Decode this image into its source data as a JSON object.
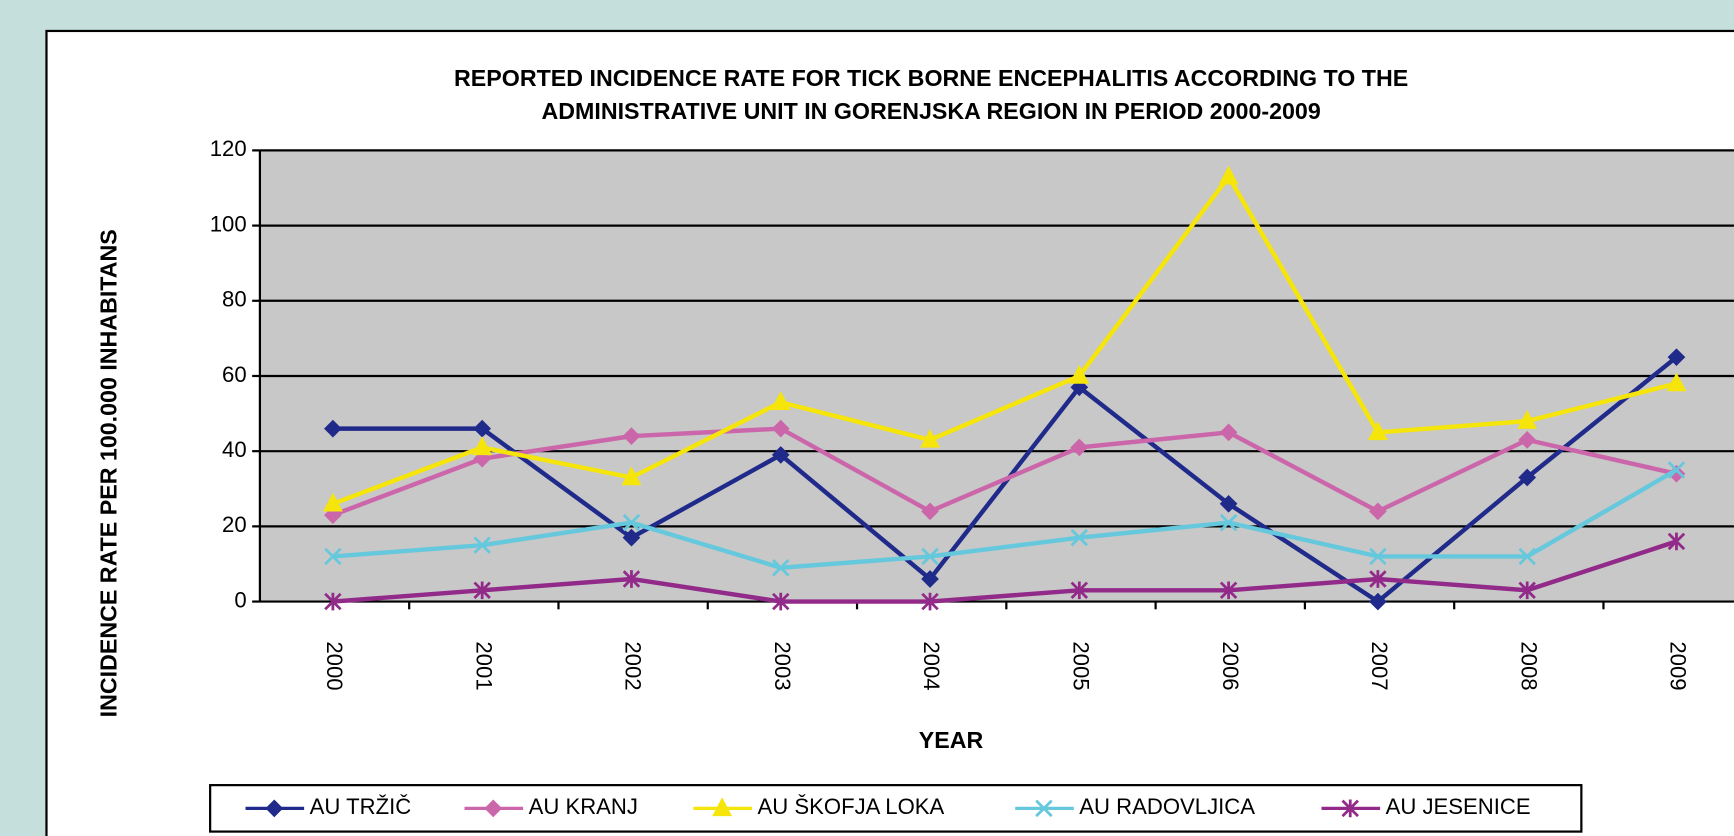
{
  "chart_data": {
    "type": "line",
    "title": [
      "REPORTED INCIDENCE RATE FOR TICK BORNE ENCEPHALITIS ACCORDING TO THE",
      "ADMINISTRATIVE UNIT IN GORENJSKA REGION IN PERIOD 2000-2009"
    ],
    "x_label": "YEAR",
    "y_label": "INCIDENCE RATE PER 100.000 INHABITANS",
    "categories": [
      "2000",
      "2001",
      "2002",
      "2003",
      "2004",
      "2005",
      "2006",
      "2007",
      "2008",
      "2009"
    ],
    "series": [
      {
        "name": "AU TRŽIČ",
        "color": "#1f2a8a",
        "marker": "diamond",
        "values": [
          46,
          46,
          17,
          39,
          6,
          57,
          26,
          0,
          33,
          65
        ]
      },
      {
        "name": "AU KRANJ",
        "color": "#cc66aa",
        "marker": "diamond",
        "values": [
          23,
          38,
          44,
          46,
          24,
          41,
          45,
          24,
          43,
          34
        ]
      },
      {
        "name": "AU ŠKOFJA LOKA",
        "color": "#f5e50a",
        "marker": "triangle",
        "values": [
          26,
          41,
          33,
          53,
          43,
          60,
          113,
          45,
          48,
          58
        ]
      },
      {
        "name": "AU RADOVLJICA",
        "color": "#66c8dc",
        "marker": "x",
        "values": [
          12,
          15,
          21,
          9,
          12,
          17,
          21,
          12,
          12,
          35
        ]
      },
      {
        "name": "AU JESENICE",
        "color": "#922a8a",
        "marker": "star",
        "values": [
          0,
          3,
          6,
          0,
          0,
          3,
          3,
          6,
          3,
          16
        ]
      }
    ],
    "ylim": [
      0,
      120
    ],
    "yticks": [
      0,
      20,
      40,
      60,
      80,
      100,
      120
    ],
    "grid": true,
    "legend": "bottom"
  }
}
